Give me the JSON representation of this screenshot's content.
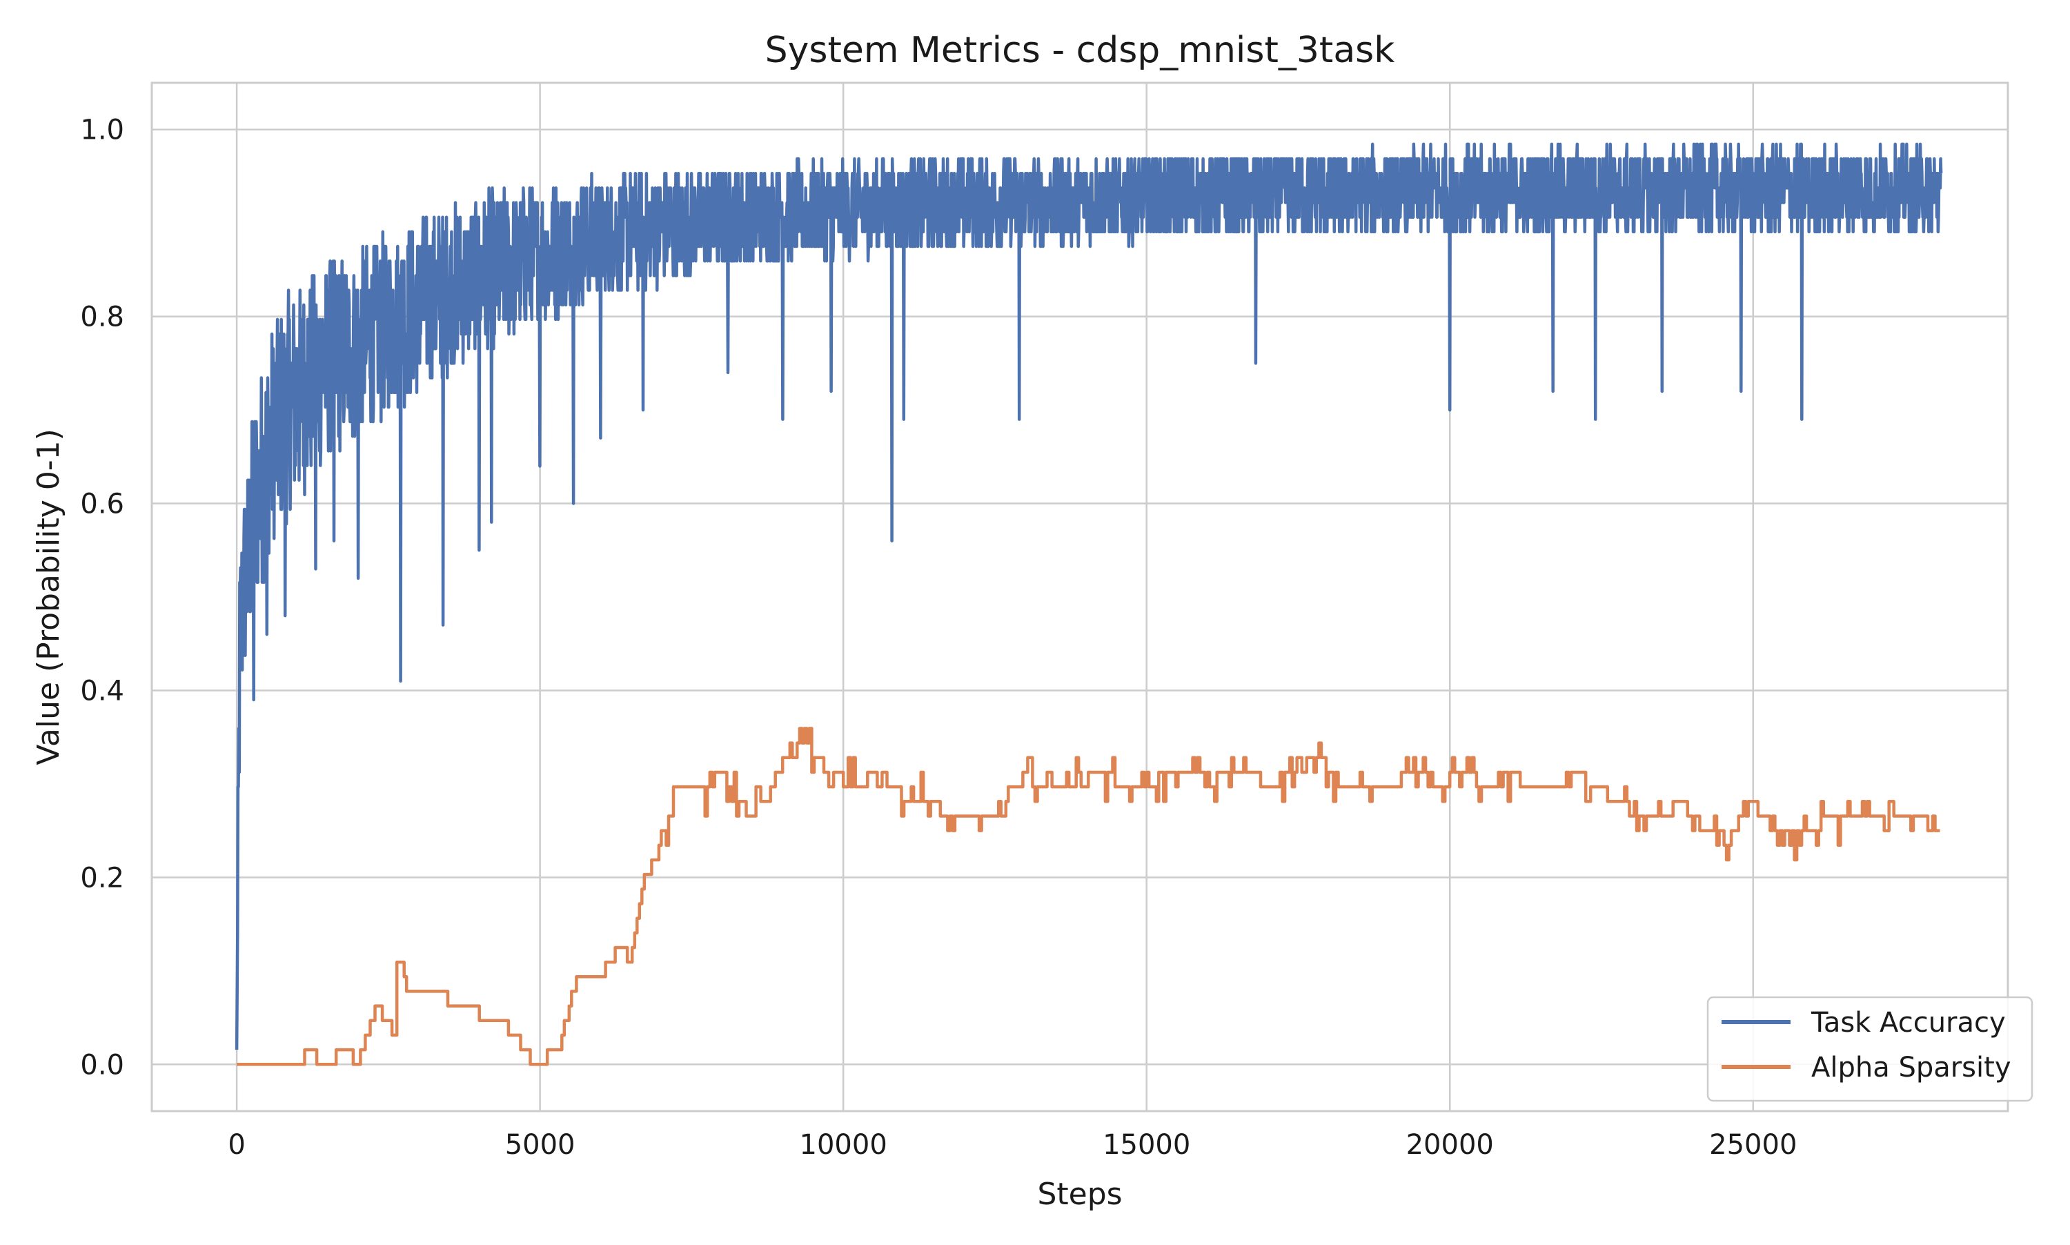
{
  "chart_data": {
    "type": "line",
    "title": "System Metrics - cdsp_mnist_3task",
    "xlabel": "Steps",
    "ylabel": "Value (Probability 0-1)",
    "xlim": [
      -1400,
      29200
    ],
    "ylim": [
      -0.05,
      1.05
    ],
    "xticks": [
      0,
      5000,
      10000,
      15000,
      20000,
      25000
    ],
    "xtick_labels": [
      "0",
      "5000",
      "10000",
      "15000",
      "20000",
      "25000"
    ],
    "yticks": [
      0.0,
      0.2,
      0.4,
      0.6,
      0.8,
      1.0
    ],
    "ytick_labels": [
      "0.0",
      "0.2",
      "0.4",
      "0.6",
      "0.8",
      "1.0"
    ],
    "grid": true,
    "legend": "bottom-right",
    "series": [
      {
        "name": "Task Accuracy",
        "color": "#4c72b0",
        "mean": {
          "x": [
            0,
            50,
            100,
            200,
            300,
            500,
            700,
            1000,
            1500,
            2000,
            2500,
            3000,
            3500,
            4000,
            4500,
            5000,
            5500,
            6000,
            7000,
            8000,
            9000,
            10000,
            12000,
            14000,
            16000,
            18000,
            20000,
            22000,
            24000,
            26000,
            28000,
            28100
          ],
          "y": [
            0.02,
            0.45,
            0.5,
            0.55,
            0.6,
            0.65,
            0.69,
            0.72,
            0.75,
            0.77,
            0.79,
            0.81,
            0.83,
            0.845,
            0.855,
            0.865,
            0.875,
            0.885,
            0.895,
            0.905,
            0.91,
            0.915,
            0.92,
            0.925,
            0.93,
            0.932,
            0.935,
            0.935,
            0.935,
            0.935,
            0.935,
            0.93
          ]
        },
        "spread": {
          "x": [
            0,
            500,
            1000,
            2000,
            3000,
            4000,
            5000,
            6000,
            8000,
            10000,
            15000,
            20000,
            28100
          ],
          "y": [
            0.1,
            0.12,
            0.12,
            0.1,
            0.095,
            0.085,
            0.075,
            0.065,
            0.055,
            0.05,
            0.045,
            0.045,
            0.045
          ]
        },
        "dips": [
          {
            "x": 280,
            "y": 0.39
          },
          {
            "x": 500,
            "y": 0.46
          },
          {
            "x": 800,
            "y": 0.48
          },
          {
            "x": 1300,
            "y": 0.53
          },
          {
            "x": 1600,
            "y": 0.56
          },
          {
            "x": 2000,
            "y": 0.52
          },
          {
            "x": 2700,
            "y": 0.41
          },
          {
            "x": 3400,
            "y": 0.47
          },
          {
            "x": 4000,
            "y": 0.55
          },
          {
            "x": 4200,
            "y": 0.58
          },
          {
            "x": 5000,
            "y": 0.64
          },
          {
            "x": 5550,
            "y": 0.6
          },
          {
            "x": 6000,
            "y": 0.67
          },
          {
            "x": 6700,
            "y": 0.7
          },
          {
            "x": 8100,
            "y": 0.74
          },
          {
            "x": 9000,
            "y": 0.69
          },
          {
            "x": 9800,
            "y": 0.72
          },
          {
            "x": 10800,
            "y": 0.56
          },
          {
            "x": 11000,
            "y": 0.69
          },
          {
            "x": 12900,
            "y": 0.69
          },
          {
            "x": 16800,
            "y": 0.75
          },
          {
            "x": 20000,
            "y": 0.7
          },
          {
            "x": 21700,
            "y": 0.72
          },
          {
            "x": 22400,
            "y": 0.69
          },
          {
            "x": 23500,
            "y": 0.72
          },
          {
            "x": 24800,
            "y": 0.72
          },
          {
            "x": 25800,
            "y": 0.69
          }
        ]
      },
      {
        "name": "Alpha Sparsity",
        "color": "#dd8452",
        "x": [
          0,
          1000,
          1200,
          1400,
          1800,
          2000,
          2300,
          2500,
          2600,
          2650,
          2800,
          3200,
          3700,
          4300,
          4600,
          4900,
          5300,
          5600,
          6000,
          6300,
          6500,
          6700,
          6900,
          7100,
          7300,
          7600,
          8000,
          8500,
          8800,
          9000,
          9400,
          9800,
          10200,
          10600,
          11000,
          11400,
          11800,
          12200,
          12600,
          13000,
          13400,
          13800,
          14200,
          14600,
          15000,
          15400,
          15800,
          16200,
          16600,
          17000,
          17400,
          17800,
          18200,
          18600,
          19000,
          19400,
          19800,
          20200,
          20600,
          21000,
          21400,
          21800,
          22200,
          22600,
          23000,
          23400,
          23800,
          24200,
          24600,
          25000,
          25400,
          25800,
          26200,
          26600,
          27000,
          27400,
          27800,
          28100
        ],
        "y": [
          0.0,
          0.0,
          0.015,
          0.0,
          0.015,
          0.0,
          0.062,
          0.047,
          0.031,
          0.125,
          0.078,
          0.078,
          0.062,
          0.047,
          0.031,
          0.0,
          0.015,
          0.094,
          0.094,
          0.125,
          0.11,
          0.2,
          0.22,
          0.27,
          0.3,
          0.29,
          0.31,
          0.27,
          0.29,
          0.33,
          0.34,
          0.31,
          0.3,
          0.31,
          0.29,
          0.28,
          0.26,
          0.26,
          0.27,
          0.31,
          0.29,
          0.3,
          0.31,
          0.3,
          0.3,
          0.31,
          0.32,
          0.31,
          0.32,
          0.3,
          0.31,
          0.33,
          0.3,
          0.29,
          0.3,
          0.31,
          0.3,
          0.31,
          0.3,
          0.31,
          0.29,
          0.3,
          0.31,
          0.29,
          0.27,
          0.26,
          0.28,
          0.25,
          0.24,
          0.28,
          0.24,
          0.25,
          0.26,
          0.27,
          0.26,
          0.27,
          0.26,
          0.25
        ]
      }
    ]
  }
}
